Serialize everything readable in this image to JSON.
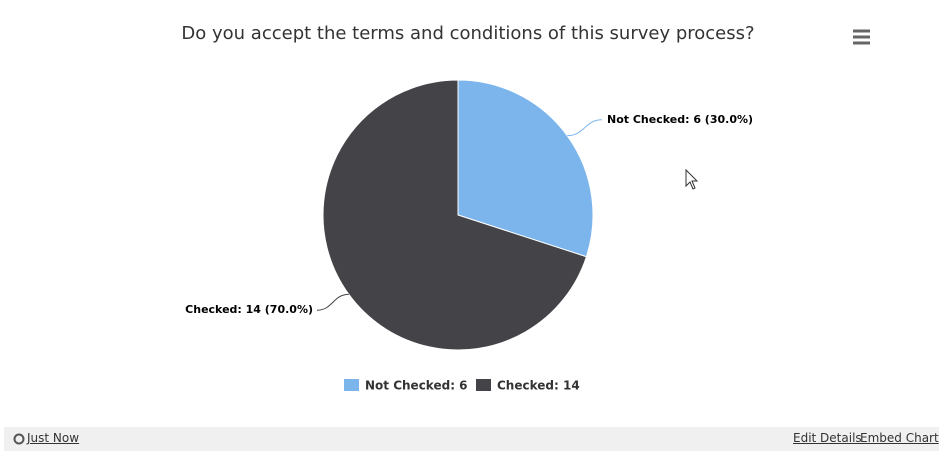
{
  "chart_data": {
    "type": "pie",
    "title": "Do you accept the terms and conditions of this survey process?",
    "categories": [
      "Not Checked: 6",
      "Checked: 14"
    ],
    "values": [
      6,
      14
    ],
    "value_labels": [
      "Not Checked: 6 (30.0%)",
      "Checked: 14 (70.0%)"
    ],
    "colors": [
      "#7cb5ec",
      "#434348"
    ]
  },
  "footer": {
    "refresh_link": "Just Now",
    "links": [
      "Edit Details",
      "Embed Chart"
    ]
  }
}
